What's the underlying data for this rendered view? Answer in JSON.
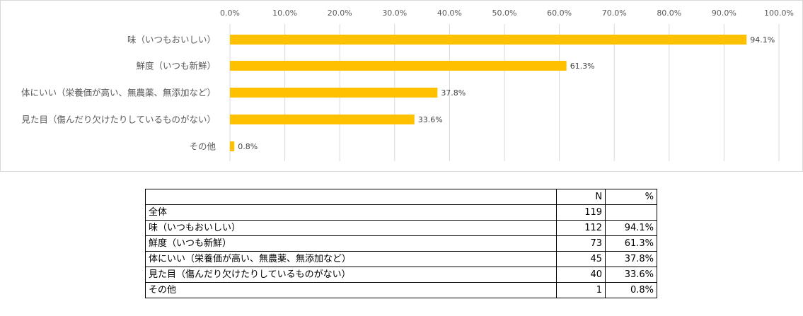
{
  "chart_data": {
    "type": "bar",
    "orientation": "horizontal",
    "categories": [
      "味（いつもおいしい）",
      "鮮度（いつも新鮮）",
      "体にいい（栄養価が高い、無農薬、無添加など）",
      "見た目（傷んだり欠けたりしているものがない）",
      "その他"
    ],
    "values": [
      94.1,
      61.3,
      37.8,
      33.6,
      0.8
    ],
    "value_labels": [
      "94.1%",
      "61.3%",
      "37.8%",
      "33.6%",
      "0.8%"
    ],
    "xlim": [
      0,
      100
    ],
    "x_ticks": [
      "0.0%",
      "10.0%",
      "20.0%",
      "30.0%",
      "40.0%",
      "50.0%",
      "60.0%",
      "70.0%",
      "80.0%",
      "90.0%",
      "100.0%"
    ],
    "x_axis_position": "top",
    "grid": true,
    "legend": "none",
    "bar_color": "#FFC000",
    "grid_color": "#d9d9d9"
  },
  "table": {
    "headers": [
      "",
      "N",
      "%"
    ],
    "rows": [
      {
        "label": "全体",
        "n": "119",
        "pct": ""
      },
      {
        "label": "味（いつもおいしい）",
        "n": "112",
        "pct": "94.1%"
      },
      {
        "label": "鮮度（いつも新鮮）",
        "n": "73",
        "pct": "61.3%"
      },
      {
        "label": "体にいい（栄養価が高い、無農薬、無添加など）",
        "n": "45",
        "pct": "37.8%"
      },
      {
        "label": "見た目（傷んだり欠けたりしているものがない）",
        "n": "40",
        "pct": "33.6%"
      },
      {
        "label": "その他",
        "n": "1",
        "pct": "0.8%"
      }
    ]
  }
}
